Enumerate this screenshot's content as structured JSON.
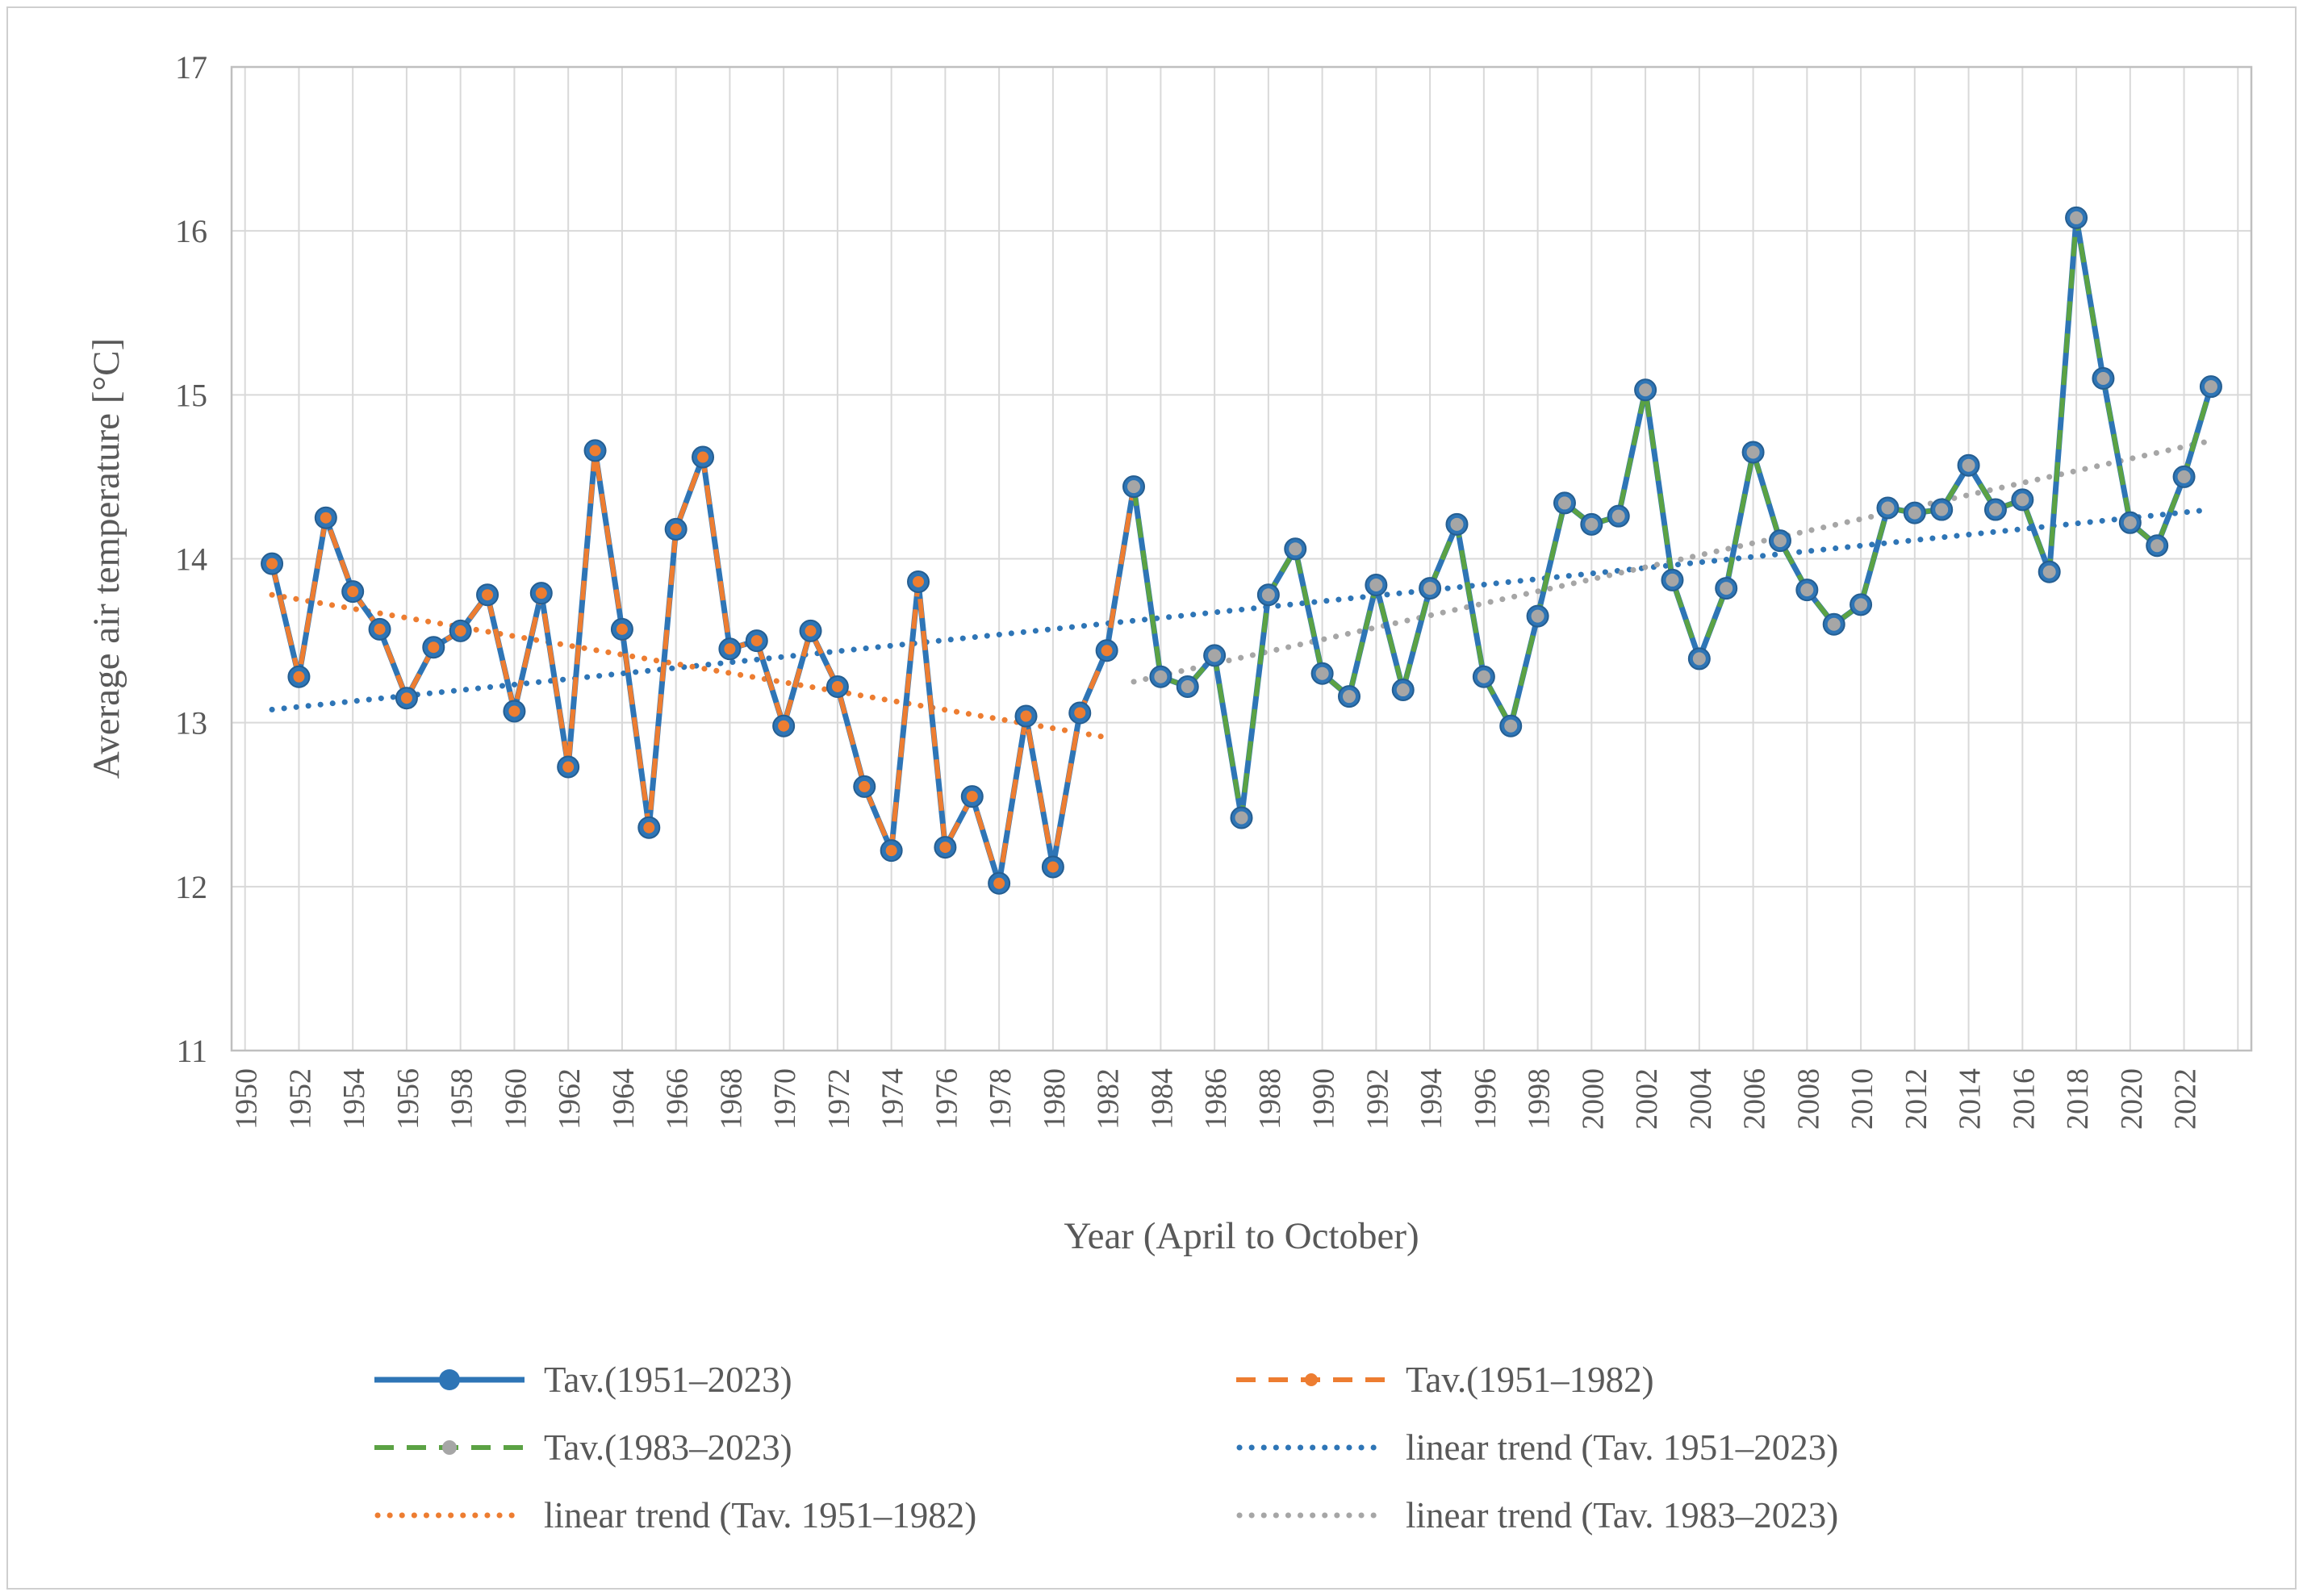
{
  "figure": {
    "background": "#FFFFFF",
    "border_color": "#CFCFCF"
  },
  "chart_data": {
    "type": "line",
    "title": "",
    "xlabel": "Year (April to October)",
    "ylabel": "Average air temperature [°C]",
    "ylim": [
      11,
      17
    ],
    "y_ticks": [
      11,
      12,
      13,
      14,
      15,
      16,
      17
    ],
    "x_tick_years": [
      1950,
      1952,
      1954,
      1956,
      1958,
      1960,
      1962,
      1964,
      1966,
      1968,
      1970,
      1972,
      1974,
      1976,
      1978,
      1980,
      1982,
      1984,
      1986,
      1988,
      1990,
      1992,
      1994,
      1996,
      1998,
      2000,
      2002,
      2004,
      2006,
      2008,
      2010,
      2012,
      2014,
      2016,
      2018,
      2020,
      2022
    ],
    "grid": true,
    "legend_position": "bottom",
    "years": [
      1951,
      1952,
      1953,
      1954,
      1955,
      1956,
      1957,
      1958,
      1959,
      1960,
      1961,
      1962,
      1963,
      1964,
      1965,
      1966,
      1967,
      1968,
      1969,
      1970,
      1971,
      1972,
      1973,
      1974,
      1975,
      1976,
      1977,
      1978,
      1979,
      1980,
      1981,
      1982,
      1983,
      1984,
      1985,
      1986,
      1987,
      1988,
      1989,
      1990,
      1991,
      1992,
      1993,
      1994,
      1995,
      1996,
      1997,
      1998,
      1999,
      2000,
      2001,
      2002,
      2003,
      2004,
      2005,
      2006,
      2007,
      2008,
      2009,
      2010,
      2011,
      2012,
      2013,
      2014,
      2015,
      2016,
      2017,
      2018,
      2019,
      2020,
      2021,
      2022,
      2023
    ],
    "values": [
      13.97,
      13.28,
      14.25,
      13.8,
      13.57,
      13.15,
      13.46,
      13.56,
      13.78,
      13.07,
      13.79,
      12.73,
      14.66,
      13.57,
      12.36,
      14.18,
      14.62,
      13.45,
      13.5,
      12.98,
      13.56,
      13.22,
      12.61,
      12.22,
      13.86,
      12.24,
      12.55,
      12.02,
      13.04,
      12.12,
      13.06,
      13.44,
      14.44,
      13.28,
      13.22,
      13.41,
      12.42,
      13.78,
      14.06,
      13.3,
      13.16,
      13.84,
      13.2,
      13.82,
      14.21,
      13.28,
      12.98,
      13.65,
      14.34,
      14.21,
      14.26,
      15.03,
      13.87,
      13.39,
      13.82,
      14.65,
      14.11,
      13.81,
      13.6,
      13.72,
      14.31,
      14.28,
      14.3,
      14.57,
      14.3,
      14.36,
      13.92,
      16.08,
      15.1,
      14.22,
      14.08,
      14.5,
      15.05
    ],
    "series": [
      {
        "name": "Tav.(1951–2023)",
        "color": "#2E75B6",
        "line": "solid",
        "marker": "circle",
        "year_range": [
          1951,
          2023
        ]
      },
      {
        "name": "Tav.(1951–1982)",
        "color": "#ED7D31",
        "line": "dash",
        "marker": "circle",
        "year_range": [
          1951,
          1982
        ]
      },
      {
        "name": "Tav.(1983–2023)",
        "color": "#5BA244",
        "marker_color": "#A6A6A6",
        "line": "dash",
        "marker": "circle",
        "year_range": [
          1983,
          2023
        ]
      }
    ],
    "trend_lines": [
      {
        "name": "linear trend (Tav. 1951–2023)",
        "color": "#2E75B6",
        "x": [
          1951,
          2023
        ],
        "y": [
          13.08,
          14.3
        ]
      },
      {
        "name": "linear trend (Tav. 1951–1982)",
        "color": "#ED7D31",
        "x": [
          1951,
          1982
        ],
        "y": [
          13.78,
          12.91
        ]
      },
      {
        "name": "linear trend (Tav. 1983–2023)",
        "color": "#A6A6A6",
        "x": [
          1983,
          2023
        ],
        "y": [
          13.25,
          14.72
        ]
      }
    ],
    "colors": {
      "blue": "#2E75B6",
      "blue_dark": "#255E91",
      "orange": "#ED7D31",
      "green": "#5BA244",
      "gray": "#A6A6A6",
      "gridline": "#D9D9D9",
      "axis_line": "#BFBFBF",
      "text": "#595959"
    }
  },
  "legend": {
    "items": [
      {
        "label": "Tav.(1951–2023)",
        "style": "line-marker",
        "line": "solid",
        "color": "#2E75B6",
        "marker_color": "#2E75B6",
        "marker_r": 13
      },
      {
        "label": "Tav.(1951–1982)",
        "style": "line-marker",
        "line": "dash",
        "color": "#ED7D31",
        "marker_color": "#ED7D31",
        "marker_r": 8
      },
      {
        "label": "Tav.(1983–2023)",
        "style": "line-marker",
        "line": "dash",
        "color": "#5BA244",
        "marker_color": "#A6A6A6",
        "marker_r": 9
      },
      {
        "label": "linear trend (Tav. 1951–2023)",
        "style": "dotted",
        "color": "#2E75B6"
      },
      {
        "label": "linear trend (Tav. 1951–1982)",
        "style": "dotted",
        "color": "#ED7D31"
      },
      {
        "label": "linear trend (Tav. 1983–2023)",
        "style": "dotted",
        "color": "#A6A6A6"
      }
    ]
  }
}
